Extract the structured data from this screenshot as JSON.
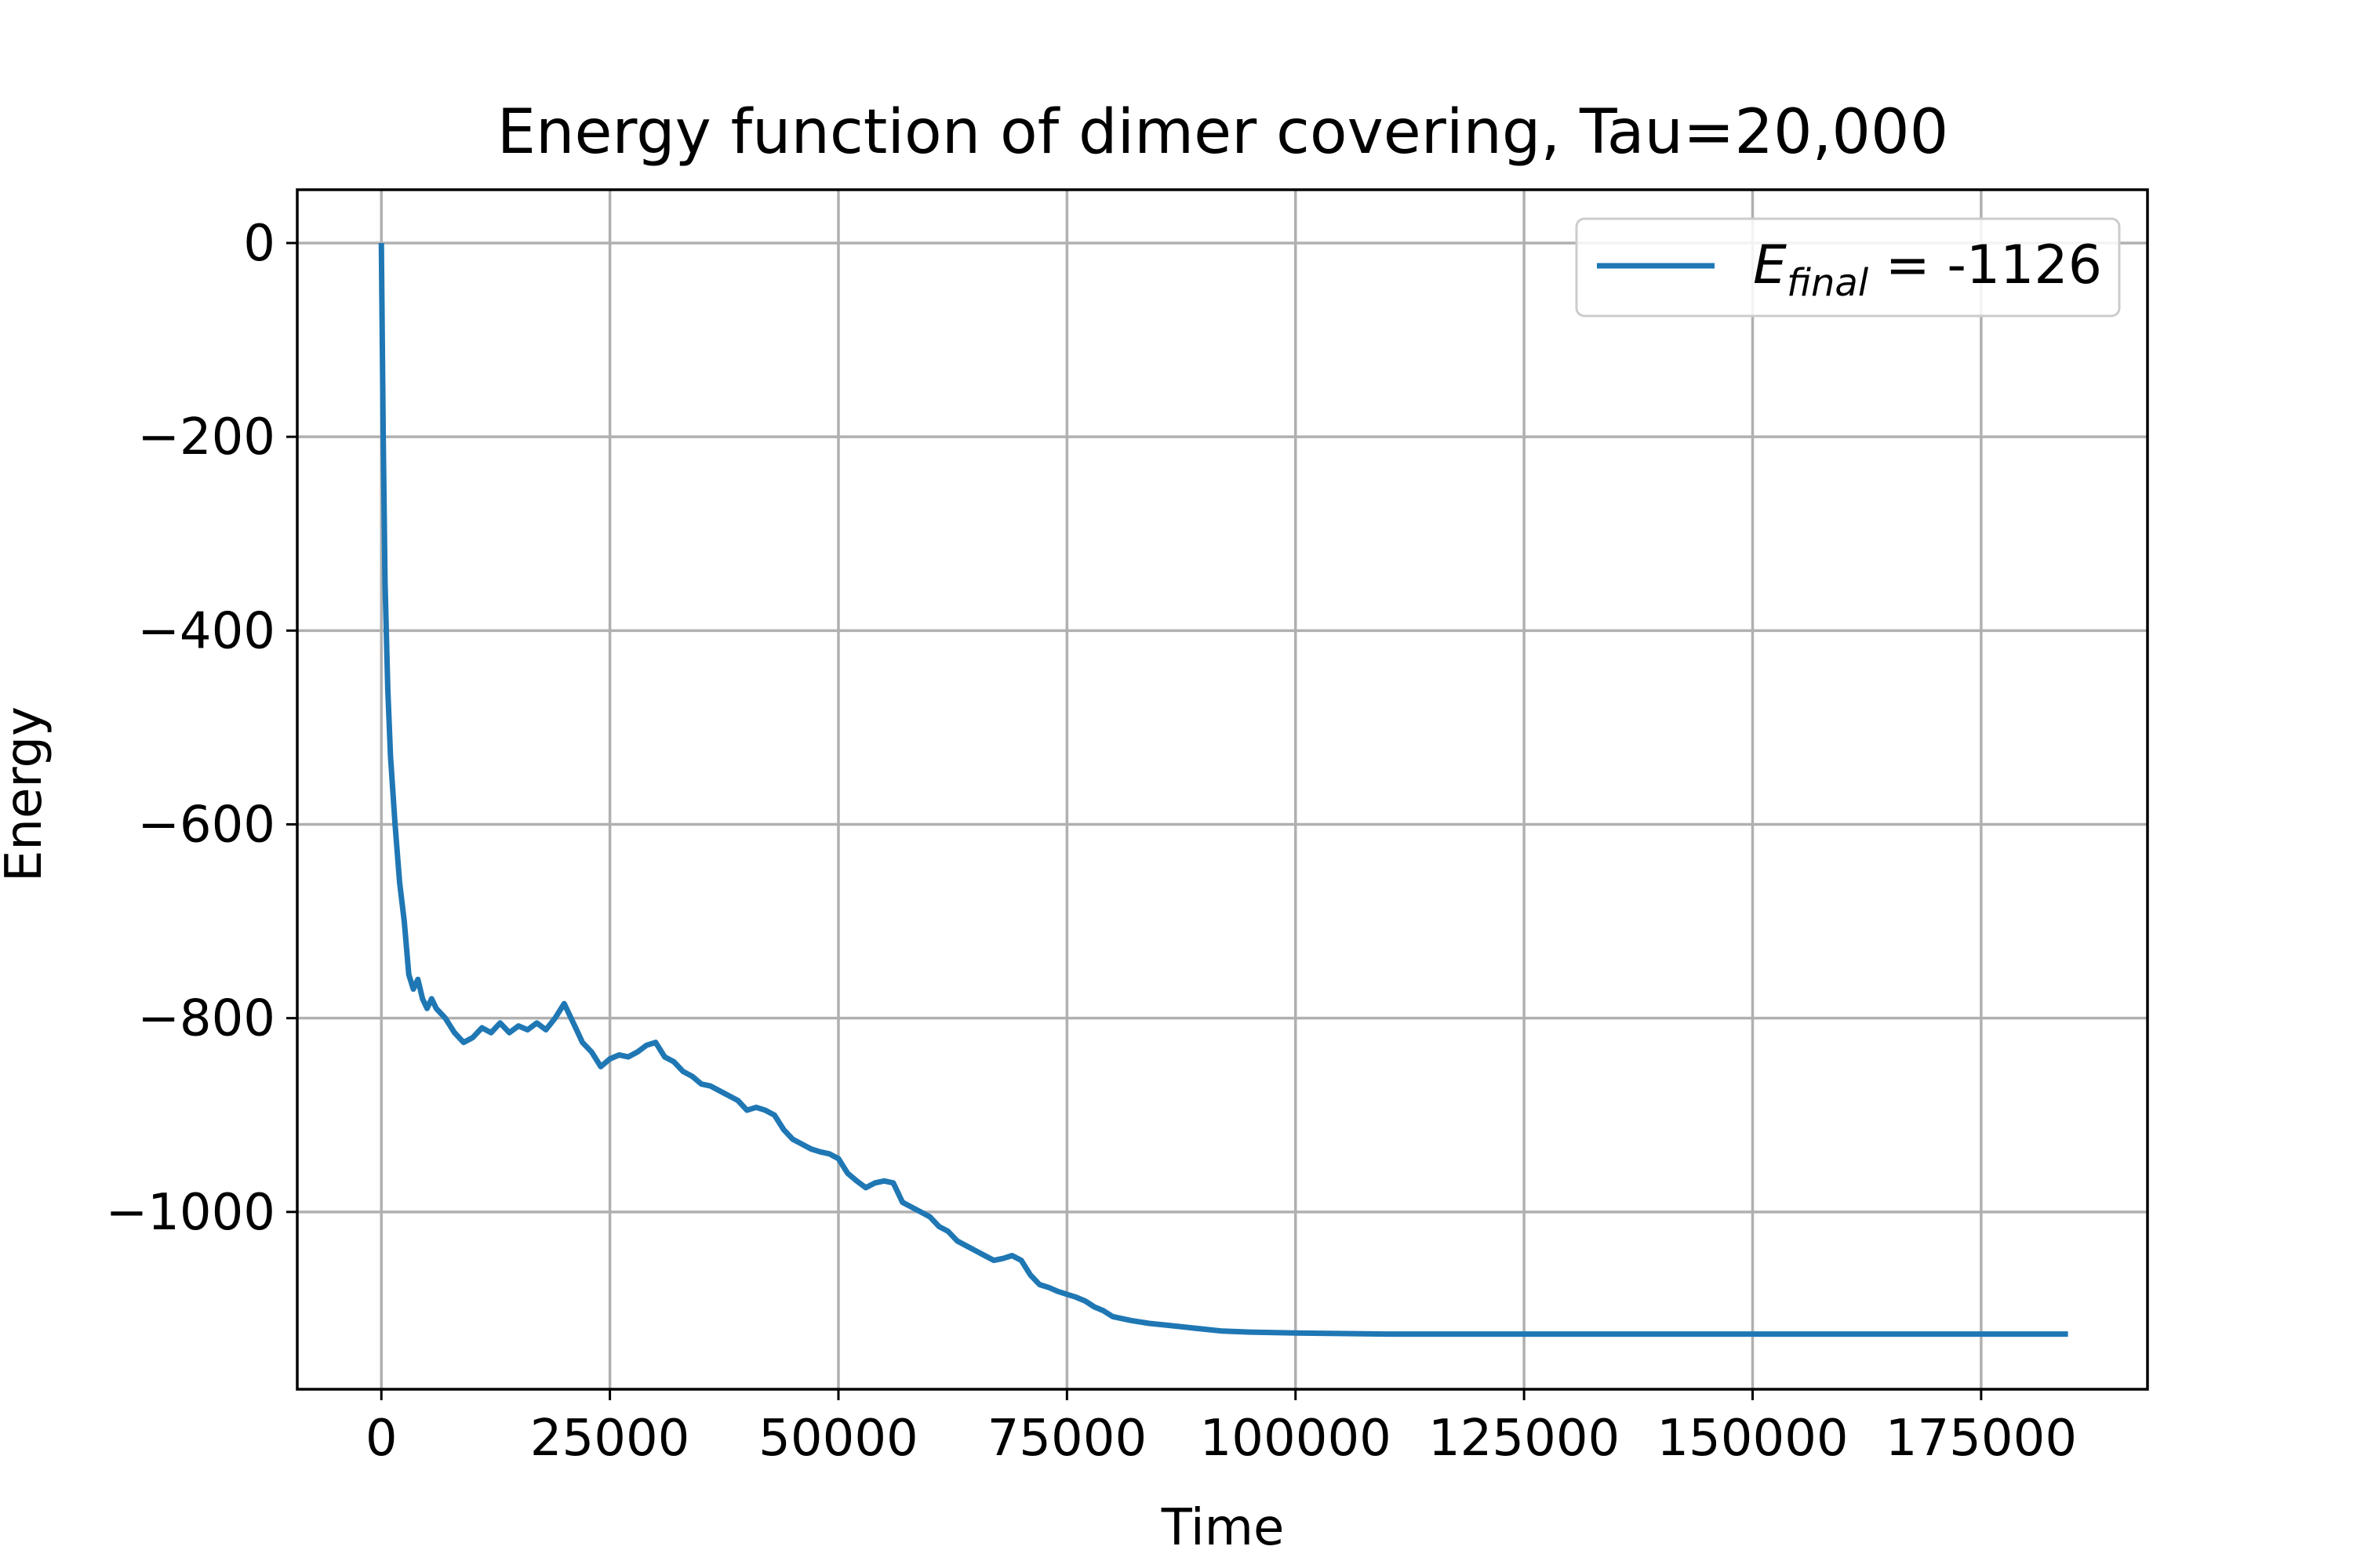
{
  "chart_data": {
    "type": "line",
    "title": "Energy function of dimer covering, Tau=20,000",
    "xlabel": "Time",
    "ylabel": "Energy",
    "xlim": [
      -9200,
      193200
    ],
    "ylim": [
      -1183,
      55
    ],
    "grid": true,
    "legend_position": "top-right",
    "xticks": [
      0,
      25000,
      50000,
      75000,
      100000,
      125000,
      150000,
      175000
    ],
    "xtick_labels": [
      "0",
      "25000",
      "50000",
      "75000",
      "100000",
      "125000",
      "150000",
      "175000"
    ],
    "yticks": [
      0,
      -200,
      -400,
      -600,
      -800,
      -1000
    ],
    "ytick_labels": [
      "0",
      "−200",
      "−400",
      "−600",
      "−800",
      "−1000"
    ],
    "series": [
      {
        "name": "E_final = -1126",
        "legend_label": {
          "symbol": "E",
          "subscript": "final",
          "value": " = -1126"
        },
        "color": "#1f77b4",
        "x": [
          0,
          200,
          400,
          700,
          1000,
          1500,
          2000,
          2500,
          3000,
          3500,
          4000,
          4500,
          5000,
          5500,
          6000,
          7000,
          8000,
          9000,
          10000,
          11000,
          12000,
          13000,
          14000,
          15000,
          16000,
          17000,
          18000,
          19000,
          20000,
          21000,
          22000,
          23000,
          24000,
          25000,
          26000,
          27000,
          28000,
          29000,
          30000,
          31000,
          32000,
          33000,
          34000,
          35000,
          36000,
          37000,
          38000,
          39000,
          40000,
          41000,
          42000,
          43000,
          44000,
          45000,
          46000,
          47000,
          48000,
          49000,
          50000,
          51000,
          52000,
          53000,
          54000,
          55000,
          56000,
          57000,
          58000,
          59000,
          60000,
          61000,
          62000,
          63000,
          64000,
          65000,
          66000,
          67000,
          68000,
          69000,
          70000,
          71000,
          72000,
          73000,
          74000,
          75000,
          76000,
          77000,
          78000,
          79000,
          80000,
          82000,
          84000,
          86000,
          88000,
          90000,
          92000,
          95000,
          100000,
          110000,
          125000,
          150000,
          175000,
          184500
        ],
        "y": [
          0,
          -200,
          -350,
          -460,
          -530,
          -600,
          -660,
          -700,
          -755,
          -770,
          -760,
          -780,
          -790,
          -780,
          -790,
          -800,
          -815,
          -825,
          -820,
          -810,
          -815,
          -805,
          -815,
          -808,
          -812,
          -805,
          -812,
          -800,
          -785,
          -805,
          -825,
          -835,
          -850,
          -842,
          -838,
          -840,
          -835,
          -828,
          -825,
          -840,
          -845,
          -855,
          -860,
          -868,
          -870,
          -875,
          -880,
          -885,
          -895,
          -892,
          -895,
          -900,
          -915,
          -925,
          -930,
          -935,
          -938,
          -940,
          -945,
          -960,
          -968,
          -975,
          -970,
          -968,
          -970,
          -990,
          -995,
          -1000,
          -1005,
          -1015,
          -1020,
          -1030,
          -1035,
          -1040,
          -1045,
          -1050,
          -1048,
          -1045,
          -1050,
          -1065,
          -1075,
          -1078,
          -1082,
          -1085,
          -1088,
          -1092,
          -1098,
          -1102,
          -1108,
          -1112,
          -1115,
          -1117,
          -1119,
          -1121,
          -1123,
          -1124,
          -1125,
          -1126,
          -1126,
          -1126,
          -1126,
          -1126
        ]
      }
    ]
  }
}
